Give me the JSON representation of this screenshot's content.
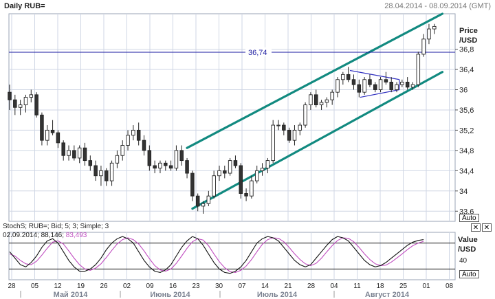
{
  "header": {
    "title": "Daily RUB=",
    "date_range": "28.04.2014 - 08.09.2014 (GMT)"
  },
  "price_panel": {
    "axis_title_1": "Price",
    "axis_title_2": "/USD",
    "auto_label": "Auto",
    "hline_label": "36,74",
    "y_ticks": [
      "36,8",
      "36,4",
      "36",
      "35,6",
      "35,2",
      "34,8",
      "34,4",
      "34",
      "33,6"
    ]
  },
  "indicator_panel": {
    "title": "StochS; RUB=; Bid; 5; 3; Simple; 3",
    "readout_date": "02.09.2014",
    "readout_k": "88,146",
    "readout_d": "83,493",
    "axis_title_1": "Value",
    "axis_title_2": "/USD",
    "tick": "40",
    "auto_label": "Auto",
    "close_glyph": "✕"
  },
  "x_axis": {
    "day_ticks": [
      "28",
      "05",
      "12",
      "19",
      "26",
      "02",
      "09",
      "16",
      "23",
      "30",
      "07",
      "14",
      "21",
      "28",
      "04",
      "11",
      "18",
      "25",
      "01",
      "08"
    ],
    "months": [
      "Май 2014",
      "Июнь 2014",
      "Июль 2014",
      "Август 2014"
    ]
  },
  "colors": {
    "channel": "#128a80",
    "grid": "#cfd6e4",
    "triangle": "#3030c0",
    "hline": "#1a1aa0",
    "stoch_k": "#111111",
    "stoch_d": "#c04cc0"
  },
  "chart_data": {
    "type": "candlestick",
    "y_range": [
      33.4,
      37.5
    ],
    "hline_value": 36.74,
    "candles": [
      [
        35.95,
        36.1,
        35.6,
        35.8
      ],
      [
        35.8,
        35.9,
        35.5,
        35.65
      ],
      [
        35.65,
        35.8,
        35.5,
        35.7
      ],
      [
        35.7,
        35.9,
        35.55,
        35.85
      ],
      [
        35.85,
        36,
        35.75,
        35.9
      ],
      [
        35.9,
        35.95,
        35.45,
        35.5
      ],
      [
        35.5,
        35.55,
        34.9,
        35.0
      ],
      [
        35.0,
        35.3,
        34.9,
        35.2
      ],
      [
        35.2,
        35.4,
        35.1,
        35.15
      ],
      [
        35.15,
        35.2,
        34.85,
        34.95
      ],
      [
        34.95,
        35.0,
        34.6,
        34.7
      ],
      [
        34.7,
        34.9,
        34.6,
        34.8
      ],
      [
        34.8,
        34.9,
        34.6,
        34.65
      ],
      [
        34.65,
        34.9,
        34.55,
        34.85
      ],
      [
        34.85,
        34.95,
        34.5,
        34.6
      ],
      [
        34.6,
        34.7,
        34.4,
        34.5
      ],
      [
        34.5,
        34.6,
        34.2,
        34.3
      ],
      [
        34.3,
        34.5,
        34.1,
        34.4
      ],
      [
        34.4,
        34.45,
        34.1,
        34.2
      ],
      [
        34.2,
        34.6,
        34.1,
        34.55
      ],
      [
        34.55,
        34.8,
        34.45,
        34.7
      ],
      [
        34.7,
        35.0,
        34.6,
        34.9
      ],
      [
        34.9,
        35.2,
        34.8,
        35.1
      ],
      [
        35.1,
        35.3,
        35.0,
        35.2
      ],
      [
        35.2,
        35.35,
        34.9,
        35.0
      ],
      [
        35.0,
        35.1,
        34.7,
        34.8
      ],
      [
        34.8,
        34.9,
        34.4,
        34.5
      ],
      [
        34.5,
        34.6,
        34.35,
        34.45
      ],
      [
        34.45,
        34.6,
        34.35,
        34.55
      ],
      [
        34.55,
        34.6,
        34.4,
        34.5
      ],
      [
        34.5,
        34.6,
        34.4,
        34.45
      ],
      [
        34.45,
        34.9,
        34.4,
        34.8
      ],
      [
        34.8,
        34.9,
        34.5,
        34.6
      ],
      [
        34.6,
        34.65,
        34.25,
        34.35
      ],
      [
        34.35,
        34.4,
        33.8,
        33.9
      ],
      [
        33.9,
        33.95,
        33.6,
        33.7
      ],
      [
        33.7,
        33.8,
        33.55,
        33.75
      ],
      [
        33.75,
        34.0,
        33.7,
        33.9
      ],
      [
        33.9,
        34.4,
        33.85,
        34.3
      ],
      [
        34.3,
        34.5,
        34.2,
        34.4
      ],
      [
        34.4,
        34.5,
        34.25,
        34.35
      ],
      [
        34.35,
        34.65,
        34.3,
        34.6
      ],
      [
        34.6,
        34.7,
        34.45,
        34.5
      ],
      [
        34.5,
        34.55,
        33.85,
        33.95
      ],
      [
        33.95,
        34.05,
        33.8,
        33.9
      ],
      [
        33.9,
        34.3,
        33.85,
        34.2
      ],
      [
        34.2,
        34.5,
        34.15,
        34.4
      ],
      [
        34.4,
        34.55,
        34.3,
        34.45
      ],
      [
        34.45,
        34.65,
        34.35,
        34.6
      ],
      [
        34.6,
        35.4,
        34.55,
        35.3
      ],
      [
        35.3,
        35.4,
        35.2,
        35.3
      ],
      [
        35.3,
        35.35,
        35.1,
        35.2
      ],
      [
        35.2,
        35.25,
        34.95,
        35.0
      ],
      [
        35.0,
        35.3,
        34.9,
        35.2
      ],
      [
        35.2,
        35.35,
        35.1,
        35.3
      ],
      [
        35.3,
        35.75,
        35.25,
        35.7
      ],
      [
        35.7,
        35.95,
        35.6,
        35.9
      ],
      [
        35.9,
        36.0,
        35.65,
        35.7
      ],
      [
        35.7,
        35.8,
        35.6,
        35.75
      ],
      [
        35.75,
        35.85,
        35.65,
        35.8
      ],
      [
        35.8,
        36.0,
        35.7,
        35.95
      ],
      [
        35.95,
        36.25,
        35.85,
        36.2
      ],
      [
        36.2,
        36.35,
        36.1,
        36.3
      ],
      [
        36.3,
        36.45,
        36.15,
        36.2
      ],
      [
        36.2,
        36.3,
        36.0,
        36.1
      ],
      [
        36.1,
        36.2,
        35.85,
        35.95
      ],
      [
        35.95,
        36.25,
        35.9,
        36.2
      ],
      [
        36.2,
        36.3,
        36.05,
        36.1
      ],
      [
        36.1,
        36.15,
        35.95,
        36.0
      ],
      [
        36.0,
        36.25,
        35.95,
        36.2
      ],
      [
        36.2,
        36.35,
        36.1,
        36.15
      ],
      [
        36.15,
        36.25,
        35.95,
        36.0
      ],
      [
        36.0,
        36.15,
        35.95,
        36.1
      ],
      [
        36.1,
        36.2,
        36.05,
        36.15
      ],
      [
        36.15,
        36.25,
        36.0,
        36.05
      ],
      [
        36.05,
        36.15,
        36.0,
        36.1
      ],
      [
        36.1,
        36.75,
        36.05,
        36.7
      ],
      [
        36.7,
        37.1,
        36.65,
        37.0
      ],
      [
        37.0,
        37.3,
        36.9,
        37.2
      ],
      [
        37.2,
        37.3,
        37.1,
        37.25
      ]
    ],
    "channel_upper": [
      [
        33,
        34.85
      ],
      [
        80.5,
        37.5
      ]
    ],
    "channel_lower": [
      [
        34,
        33.65
      ],
      [
        80.5,
        36.35
      ]
    ],
    "triangle_upper": [
      [
        63.3,
        36.38
      ],
      [
        72.5,
        36.2
      ]
    ],
    "triangle_lower": [
      [
        65.2,
        35.85
      ],
      [
        72.5,
        36.0
      ]
    ],
    "stoch_range": [
      0,
      100
    ],
    "stoch_levels": [
      20,
      80
    ],
    "stoch_k": [
      60,
      45,
      30,
      25,
      35,
      50,
      70,
      85,
      90,
      80,
      60,
      40,
      25,
      15,
      15,
      20,
      30,
      45,
      65,
      80,
      90,
      95,
      90,
      80,
      60,
      40,
      25,
      15,
      12,
      18,
      30,
      50,
      70,
      85,
      95,
      90,
      75,
      55,
      35,
      20,
      12,
      10,
      15,
      25,
      40,
      60,
      80,
      90,
      95,
      92,
      85,
      70,
      55,
      40,
      30,
      25,
      30,
      45,
      60,
      75,
      88,
      95,
      92,
      85,
      70,
      55,
      40,
      30,
      25,
      28,
      35,
      45,
      55,
      65,
      75,
      82,
      86,
      88
    ],
    "stoch_d": [
      55,
      50,
      40,
      32,
      30,
      38,
      52,
      68,
      82,
      85,
      78,
      62,
      45,
      30,
      20,
      17,
      22,
      32,
      47,
      63,
      78,
      88,
      92,
      88,
      78,
      62,
      44,
      28,
      18,
      15,
      20,
      33,
      50,
      68,
      83,
      90,
      87,
      74,
      55,
      37,
      23,
      14,
      12,
      17,
      27,
      42,
      60,
      77,
      88,
      92,
      91,
      83,
      70,
      55,
      42,
      32,
      28,
      33,
      45,
      60,
      74,
      86,
      92,
      91,
      83,
      70,
      55,
      42,
      32,
      28,
      29,
      36,
      45,
      55,
      65,
      74,
      80,
      84
    ]
  }
}
